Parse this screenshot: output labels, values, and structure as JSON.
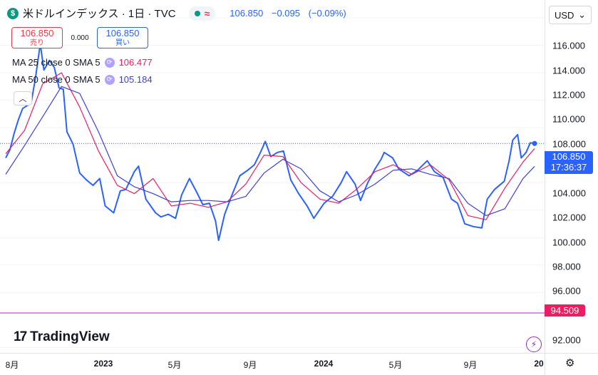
{
  "header": {
    "logo_glyph": "$",
    "title": "米ドルインデックス · 1日 · TVC",
    "status_glyph": "≈",
    "last": "106.850",
    "change": "−0.095",
    "change_pct": "(−0.09%)"
  },
  "trade": {
    "sell_price": "106.850",
    "sell_label": "売り",
    "spread": "0.000",
    "buy_price": "106.850",
    "buy_label": "買い"
  },
  "legend": {
    "ma25": {
      "label": "MA 25 close 0 SMA 5",
      "value": "106.477",
      "color": "#e91e63"
    },
    "ma50": {
      "label": "MA 50 close 0 SMA 5",
      "value": "105.184",
      "color": "#3f3fd8"
    }
  },
  "price_axis": {
    "currency": "USD",
    "ticks": [
      "116.000",
      "114.000",
      "112.000",
      "110.000",
      "108.000",
      "104.000",
      "102.000",
      "100.000",
      "98.000",
      "96.000",
      "92.000"
    ],
    "last_price": "106.850",
    "countdown": "17:36:37",
    "line_value": "94.509"
  },
  "time_axis": {
    "labels": [
      "8月",
      "2023",
      "5月",
      "9月",
      "2024",
      "5月",
      "9月",
      "20"
    ]
  },
  "branding": {
    "name": "TradingView",
    "mark": "17"
  },
  "colors": {
    "price": "#2962ff",
    "ma25": "#e91e63",
    "ma50": "#3f3fd8",
    "hline": "#9c27b0"
  },
  "chart_data": {
    "type": "line",
    "title": "米ドルインデックス · 1日 · TVC",
    "ylim": [
      91.6,
      117.3
    ],
    "x_range": [
      "2022-08-01",
      "2024-12-20"
    ],
    "horizontal_line": 94.509,
    "last_price": 106.85,
    "series": [
      {
        "name": "米ドルインデックス",
        "x": [
          "2022-08-01",
          "2022-08-08",
          "2022-08-15",
          "2022-08-22",
          "2022-08-29",
          "2022-09-05",
          "2022-09-12",
          "2022-09-19",
          "2022-09-27",
          "2022-10-03",
          "2022-10-12",
          "2022-10-20",
          "2022-10-28",
          "2022-11-04",
          "2022-11-10",
          "2022-11-20",
          "2022-12-01",
          "2022-12-12",
          "2022-12-23",
          "2023-01-03",
          "2023-01-12",
          "2023-01-26",
          "2023-02-06",
          "2023-02-15",
          "2023-03-01",
          "2023-03-08",
          "2023-03-20",
          "2023-04-05",
          "2023-04-14",
          "2023-04-26",
          "2023-05-08",
          "2023-05-18",
          "2023-05-31",
          "2023-06-12",
          "2023-06-22",
          "2023-07-03",
          "2023-07-13",
          "2023-07-18",
          "2023-07-28",
          "2023-08-10",
          "2023-08-22",
          "2023-09-04",
          "2023-09-15",
          "2023-09-25",
          "2023-10-03",
          "2023-10-12",
          "2023-10-23",
          "2023-11-02",
          "2023-11-14",
          "2023-11-27",
          "2023-12-11",
          "2023-12-22",
          "2024-01-08",
          "2024-01-22",
          "2024-02-05",
          "2024-02-14",
          "2024-02-28",
          "2024-03-08",
          "2024-03-20",
          "2024-04-01",
          "2024-04-11",
          "2024-04-16",
          "2024-04-30",
          "2024-05-10",
          "2024-05-27",
          "2024-06-10",
          "2024-06-26",
          "2024-07-08",
          "2024-07-22",
          "2024-08-05",
          "2024-08-15",
          "2024-08-27",
          "2024-09-10",
          "2024-09-24",
          "2024-10-03",
          "2024-10-15",
          "2024-10-31",
          "2024-11-08",
          "2024-11-14",
          "2024-11-22",
          "2024-11-28",
          "2024-12-06",
          "2024-12-13",
          "2024-12-20"
        ],
        "values": [
          105.8,
          106.4,
          107.6,
          108.6,
          109.4,
          109.6,
          109.8,
          111.6,
          114.1,
          112.2,
          112.9,
          112.4,
          110.9,
          110.8,
          107.7,
          106.8,
          104.7,
          104.2,
          103.8,
          104.3,
          102.3,
          101.8,
          103.4,
          103.5,
          104.8,
          105.2,
          102.8,
          101.8,
          101.5,
          101.7,
          101.4,
          103.1,
          104.3,
          103.3,
          102.4,
          102.5,
          101.2,
          99.8,
          101.7,
          103.2,
          104.5,
          104.9,
          105.3,
          106.2,
          107.0,
          105.9,
          106.2,
          106.3,
          104.2,
          103.2,
          102.3,
          101.4,
          102.5,
          103.0,
          104.0,
          104.8,
          103.9,
          102.7,
          104.0,
          105.0,
          105.7,
          106.2,
          105.8,
          105.0,
          104.5,
          104.9,
          105.6,
          104.8,
          104.4,
          102.8,
          102.5,
          101.0,
          100.8,
          100.7,
          102.8,
          103.5,
          104.1,
          105.6,
          107.1,
          107.5,
          105.8,
          106.2,
          106.9,
          106.85
        ]
      },
      {
        "name": "MA 25",
        "x": [
          "2022-08-01",
          "2022-09-01",
          "2022-10-01",
          "2022-11-01",
          "2022-12-01",
          "2023-01-01",
          "2023-02-01",
          "2023-03-01",
          "2023-04-01",
          "2023-05-01",
          "2023-06-01",
          "2023-07-01",
          "2023-08-01",
          "2023-09-01",
          "2023-10-01",
          "2023-11-01",
          "2023-12-01",
          "2024-01-01",
          "2024-02-01",
          "2024-03-01",
          "2024-04-01",
          "2024-05-01",
          "2024-06-01",
          "2024-07-01",
          "2024-08-01",
          "2024-09-01",
          "2024-10-01",
          "2024-11-01",
          "2024-12-01",
          "2024-12-20"
        ],
        "values": [
          106.1,
          107.8,
          111.2,
          112.0,
          109.5,
          106.3,
          103.8,
          103.2,
          104.3,
          102.3,
          102.5,
          102.2,
          102.6,
          103.9,
          106.0,
          105.9,
          104.0,
          102.8,
          102.5,
          103.5,
          104.8,
          105.3,
          104.6,
          105.3,
          104.2,
          101.6,
          101.3,
          103.6,
          105.5,
          106.48
        ]
      },
      {
        "name": "MA 50",
        "x": [
          "2022-08-01",
          "2022-09-01",
          "2022-10-01",
          "2022-11-01",
          "2022-12-01",
          "2023-01-01",
          "2023-02-01",
          "2023-03-01",
          "2023-04-01",
          "2023-05-01",
          "2023-06-01",
          "2023-07-01",
          "2023-08-01",
          "2023-09-01",
          "2023-10-01",
          "2023-11-01",
          "2023-12-01",
          "2024-01-01",
          "2024-02-01",
          "2024-03-01",
          "2024-04-01",
          "2024-05-01",
          "2024-06-01",
          "2024-07-01",
          "2024-08-01",
          "2024-09-01",
          "2024-10-01",
          "2024-11-01",
          "2024-12-01",
          "2024-12-20"
        ],
        "values": [
          104.6,
          106.7,
          108.8,
          111.0,
          110.5,
          107.7,
          104.5,
          103.7,
          103.2,
          102.6,
          102.7,
          102.7,
          102.6,
          103.0,
          104.7,
          105.7,
          105.0,
          103.4,
          102.6,
          103.1,
          103.9,
          104.9,
          105.0,
          104.6,
          104.3,
          102.5,
          101.6,
          102.1,
          104.3,
          105.18
        ]
      }
    ]
  }
}
